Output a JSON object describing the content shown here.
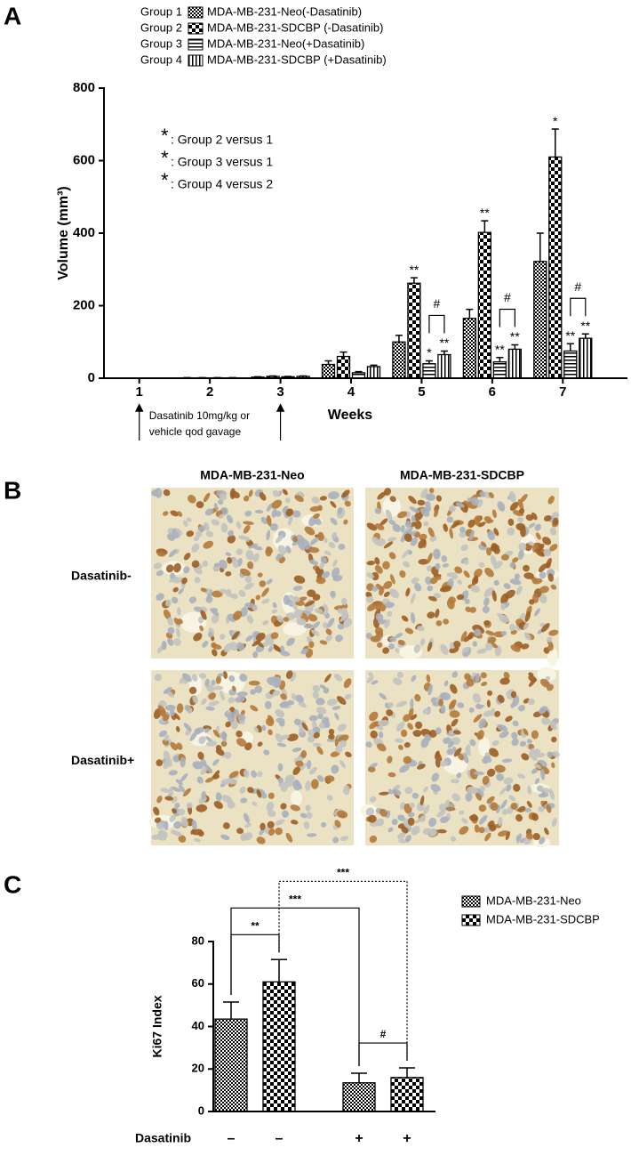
{
  "chart_data": [
    {
      "type": "bar",
      "panel": "A",
      "ylabel": "Volume (mm³)",
      "xlabel": "Weeks",
      "categories": [
        "1",
        "2",
        "3",
        "4",
        "5",
        "6",
        "7"
      ],
      "ylim": [
        0,
        800
      ],
      "yticks": [
        0,
        200,
        400,
        600,
        800
      ],
      "series": [
        {
          "group": "Group 1",
          "name": "MDA-MB-231-Neo(-Dasatinib)",
          "pattern": "checker-fine",
          "values": [
            0,
            1,
            3,
            38,
            100,
            165,
            322
          ],
          "errors": [
            0,
            0.5,
            1,
            10,
            18,
            25,
            78
          ]
        },
        {
          "group": "Group 2",
          "name": "MDA-MB-231-SDCBP (-Dasatinib)",
          "pattern": "checker-coarse",
          "values": [
            0,
            1,
            5,
            60,
            262,
            402,
            610
          ],
          "errors": [
            0,
            0.5,
            1,
            12,
            15,
            32,
            77
          ]
        },
        {
          "group": "Group 3",
          "name": "MDA-MB-231-Neo(+Dasatinib)",
          "pattern": "hlines",
          "values": [
            0,
            1,
            4,
            15,
            40,
            45,
            75
          ],
          "errors": [
            0,
            0.5,
            1,
            3,
            8,
            12,
            20
          ]
        },
        {
          "group": "Group 4",
          "name": "MDA-MB-231-SDCBP (+Dasatinib)",
          "pattern": "vlines",
          "values": [
            0,
            1,
            5,
            32,
            65,
            80,
            110
          ],
          "errors": [
            0,
            0.5,
            1,
            4,
            10,
            12,
            12
          ]
        }
      ],
      "annotations": [
        {
          "text": "**",
          "category": 4,
          "series": 1,
          "color": "#000000"
        },
        {
          "text": "*",
          "category": 4,
          "series": 2,
          "color": "#2a2ad6"
        },
        {
          "text": "**",
          "category": 4,
          "series": 3,
          "color": "#e8231f"
        },
        {
          "text": "**",
          "category": 5,
          "series": 1,
          "color": "#000000"
        },
        {
          "text": "**",
          "category": 5,
          "series": 2,
          "color": "#2a2ad6"
        },
        {
          "text": "**",
          "category": 5,
          "series": 3,
          "color": "#e8231f"
        },
        {
          "text": "*",
          "category": 6,
          "series": 1,
          "color": "#000000"
        },
        {
          "text": "**",
          "category": 6,
          "series": 2,
          "color": "#2a2ad6"
        },
        {
          "text": "**",
          "category": 6,
          "series": 3,
          "color": "#e8231f"
        }
      ],
      "brackets": [
        {
          "text": "#",
          "category": 4,
          "from": 2,
          "to": 3
        },
        {
          "text": "#",
          "category": 5,
          "from": 2,
          "to": 3
        },
        {
          "text": "#",
          "category": 6,
          "from": 2,
          "to": 3
        }
      ],
      "key": [
        {
          "symbol": "*",
          "text": ": Group 2 versus 1",
          "color": "#000000"
        },
        {
          "symbol": "*",
          "text": ": Group 3 versus 1",
          "color": "#2a2ad6"
        },
        {
          "symbol": "*",
          "text": ": Group 4 versus 2",
          "color": "#e8231f"
        }
      ],
      "note": {
        "lines": [
          "Dasatinib 10mg/kg or",
          "vehicle qod gavage"
        ],
        "arrows": [
          0,
          2
        ]
      }
    },
    {
      "type": "image-grid",
      "panel": "B",
      "columns": [
        "MDA-MB-231-Neo",
        "MDA-MB-231-SDCBP"
      ],
      "rows": [
        "Dasatinib-",
        "Dasatinib+"
      ]
    },
    {
      "type": "bar",
      "panel": "C",
      "ylabel": "Ki67 Index",
      "xlabel": "Dasatinib",
      "categories": [
        "–",
        "–",
        "+",
        "+"
      ],
      "ylim": [
        0,
        80
      ],
      "yticks": [
        0,
        20,
        40,
        60,
        80
      ],
      "series": [
        {
          "name": "MDA-MB-231-Neo",
          "pattern": "checker-fine",
          "values": [
            43.5,
            null,
            13.5,
            null
          ],
          "errors": [
            8,
            null,
            4.5,
            null
          ]
        },
        {
          "name": "MDA-MB-231-SDCBP",
          "pattern": "checker-coarse",
          "values": [
            null,
            61,
            null,
            16
          ],
          "errors": [
            null,
            10.5,
            null,
            4.5
          ]
        }
      ],
      "brackets": [
        {
          "text": "***",
          "from": 0,
          "to": 2,
          "style": "solid"
        },
        {
          "text": "***",
          "from": 1,
          "to": 3,
          "style": "dotted"
        },
        {
          "text": "**",
          "from": 0,
          "to": 1,
          "style": "solid"
        },
        {
          "text": "#",
          "from": 2,
          "to": 3,
          "style": "solid"
        }
      ]
    }
  ]
}
